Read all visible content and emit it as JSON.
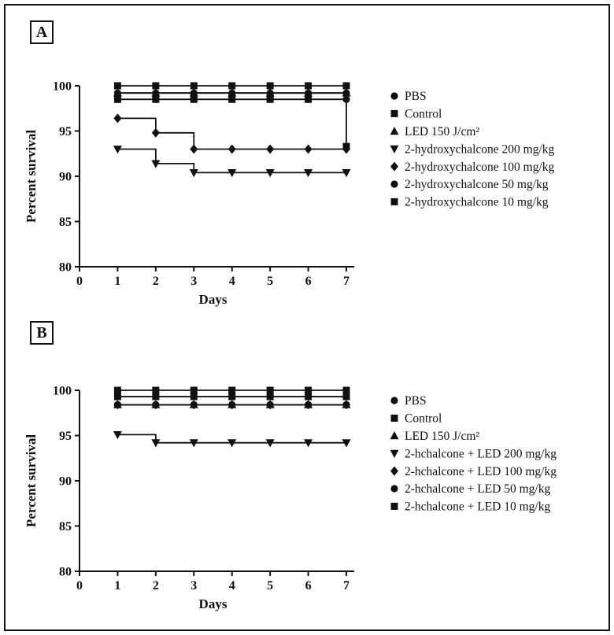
{
  "figure": {
    "border_color": "#111111",
    "background": "#ffffff"
  },
  "chart_data": [
    {
      "type": "line",
      "panel_label": "A",
      "title": "",
      "xlabel": "Days",
      "ylabel": "Percent survival",
      "xlim": [
        0,
        7.2
      ],
      "ylim": [
        80,
        100
      ],
      "xticks": [
        0,
        1,
        2,
        3,
        4,
        5,
        6,
        7
      ],
      "yticks": [
        80,
        85,
        90,
        95,
        100
      ],
      "grid": false,
      "legend_position": "right",
      "line_color": "#111111",
      "line_style": "step-after",
      "x": [
        1,
        2,
        3,
        4,
        5,
        6,
        7
      ],
      "series": [
        {
          "name": "PBS",
          "marker": "circle",
          "values": [
            99.2,
            99.2,
            99.2,
            99.2,
            99.2,
            99.2,
            99.2
          ]
        },
        {
          "name": "Control",
          "marker": "square",
          "values": [
            100,
            100,
            100,
            100,
            100,
            100,
            100
          ]
        },
        {
          "name": "LED 150 J/cm²",
          "marker": "triangle-up",
          "values": [
            99.2,
            99.2,
            99.2,
            99.2,
            99.2,
            99.2,
            99.2
          ]
        },
        {
          "name": "2-hydroxychalcone 200 mg/kg",
          "marker": "triangle-down",
          "values": [
            93,
            91.4,
            90.4,
            90.4,
            90.4,
            90.4,
            90.4
          ]
        },
        {
          "name": "2-hydroxychalcone 100 mg/kg",
          "marker": "diamond",
          "values": [
            96.4,
            94.8,
            93,
            93,
            93,
            93,
            93
          ]
        },
        {
          "name": "2-hydroxychalcone 50 mg/kg",
          "marker": "circle",
          "values": [
            98.5,
            98.5,
            98.5,
            98.5,
            98.5,
            98.5,
            98.5
          ]
        },
        {
          "name": "2-hydroxychalcone 10 mg/kg",
          "marker": "square",
          "values": [
            98.5,
            98.5,
            98.5,
            98.5,
            98.5,
            98.5,
            93.3
          ]
        }
      ]
    },
    {
      "type": "line",
      "panel_label": "B",
      "title": "",
      "xlabel": "Days",
      "ylabel": "Percent survival",
      "xlim": [
        0,
        7.2
      ],
      "ylim": [
        80,
        100
      ],
      "xticks": [
        0,
        1,
        2,
        3,
        4,
        5,
        6,
        7
      ],
      "yticks": [
        80,
        85,
        90,
        95,
        100
      ],
      "grid": false,
      "legend_position": "right",
      "line_color": "#111111",
      "line_style": "step-after",
      "x": [
        1,
        2,
        3,
        4,
        5,
        6,
        7
      ],
      "series": [
        {
          "name": "PBS",
          "marker": "circle",
          "values": [
            98.4,
            98.4,
            98.4,
            98.4,
            98.4,
            98.4,
            98.4
          ]
        },
        {
          "name": "Control",
          "marker": "square",
          "values": [
            100,
            100,
            100,
            100,
            100,
            100,
            100
          ]
        },
        {
          "name": "LED 150 J/cm²",
          "marker": "triangle-up",
          "values": [
            98.4,
            98.4,
            98.4,
            98.4,
            98.4,
            98.4,
            98.4
          ]
        },
        {
          "name": "2-hchalcone + LED 200 mg/kg",
          "marker": "triangle-down",
          "values": [
            95.1,
            94.2,
            94.2,
            94.2,
            94.2,
            94.2,
            94.2
          ]
        },
        {
          "name": "2-hchalcone + LED  100 mg/kg",
          "marker": "diamond",
          "values": [
            98.4,
            98.4,
            98.4,
            98.4,
            98.4,
            98.4,
            98.4
          ]
        },
        {
          "name": "2-hchalcone + LED 50 mg/kg",
          "marker": "circle",
          "values": [
            98.4,
            98.4,
            98.4,
            98.4,
            98.4,
            98.4,
            98.4
          ]
        },
        {
          "name": "2-hchalcone + LED 10 mg/kg",
          "marker": "square",
          "values": [
            99.3,
            99.3,
            99.3,
            99.3,
            99.3,
            99.3,
            99.3
          ]
        }
      ]
    }
  ]
}
